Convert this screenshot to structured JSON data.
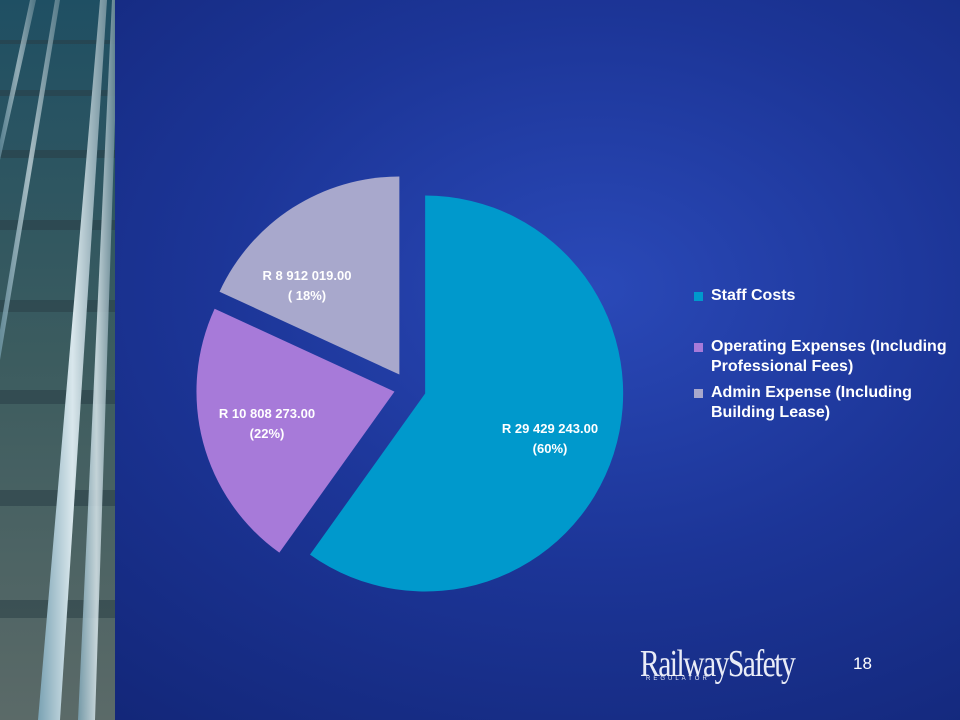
{
  "chart_data": {
    "type": "pie",
    "series": [
      {
        "name": "",
        "values": [
          29429243.0,
          10808273.0,
          8912019.0
        ]
      }
    ],
    "categories": [
      "Staff Costs",
      "Operating Expenses (Including Professional Fees)",
      "Admin Expense (Including Building Lease)"
    ],
    "percentages": [
      60,
      22,
      18
    ],
    "data_labels": [
      [
        "R 29 429 243.00",
        "(60%)"
      ],
      [
        "R 10 808 273.00",
        "(22%)"
      ],
      [
        "R 8 912 019.00",
        "( 18%)"
      ]
    ],
    "colors": [
      "#0099cc",
      "#a77ad9",
      "#a8a8cc"
    ],
    "exploded": true,
    "legend_position": "right"
  },
  "logo": {
    "name": "RailwaySafety",
    "sub": "REGULATOR"
  },
  "page_number": "18"
}
